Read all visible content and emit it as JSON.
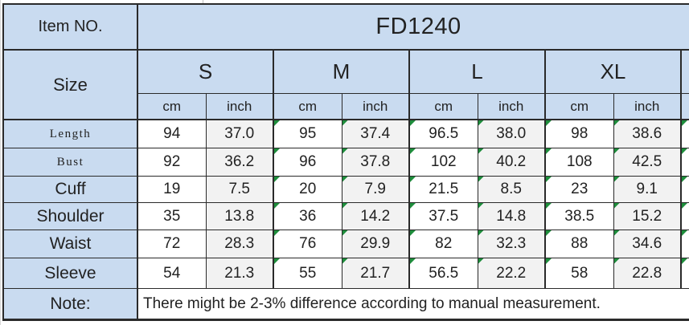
{
  "table": {
    "item_label": "Item NO.",
    "item_number": "FD1240",
    "size_label": "Size",
    "sizes": [
      "S",
      "M",
      "L",
      "XL"
    ],
    "unit_headers": [
      "cm",
      "inch",
      "cm",
      "inch",
      "cm",
      "inch",
      "cm",
      "inch"
    ],
    "measurements": [
      {
        "label": "Length",
        "values": [
          "94",
          "37.0",
          "95",
          "37.4",
          "96.5",
          "38.0",
          "98",
          "38.6"
        ]
      },
      {
        "label": "Bust",
        "values": [
          "92",
          "36.2",
          "96",
          "37.8",
          "102",
          "40.2",
          "108",
          "42.5"
        ]
      },
      {
        "label": "Cuff",
        "values": [
          "19",
          "7.5",
          "20",
          "7.9",
          "21.5",
          "8.5",
          "23",
          "9.1"
        ]
      },
      {
        "label": "Shoulder",
        "values": [
          "35",
          "13.8",
          "36",
          "14.2",
          "37.5",
          "14.8",
          "38.5",
          "15.2"
        ]
      },
      {
        "label": "Waist",
        "values": [
          "72",
          "28.3",
          "76",
          "29.9",
          "82",
          "32.3",
          "88",
          "34.6"
        ]
      },
      {
        "label": "Sleeve",
        "values": [
          "54",
          "21.3",
          "55",
          "21.7",
          "56.5",
          "22.2",
          "58",
          "22.8"
        ]
      }
    ],
    "note_label": "Note:",
    "note_text": "There might be 2-3% difference according to manual measurement."
  },
  "colors": {
    "header_blue": "#c9dbf0",
    "inch_column_gray": "#f2f2f2",
    "border": "#2a2a2a",
    "comment_triangle_green": "#1e8e3c"
  }
}
